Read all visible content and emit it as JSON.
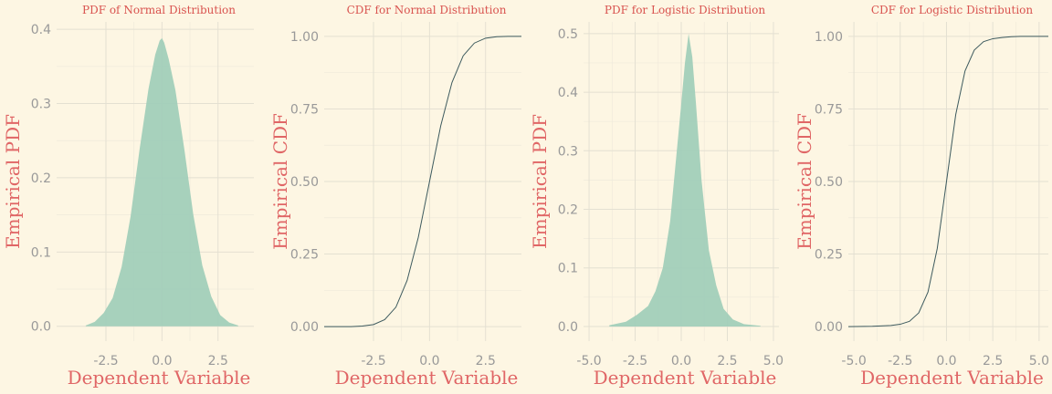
{
  "colors": {
    "background": "#fdf6e3",
    "title": "#d9534f",
    "axis_title": "#e06666",
    "tick": "#999999",
    "pdf_fill": "#9fcdb8",
    "cdf_line": "#3d5a5e"
  },
  "chart_data": [
    {
      "id": "p1",
      "type": "area",
      "title": "PDF of Normal Distribution",
      "xlabel": "Dependent Variable",
      "ylabel": "Empirical PDF",
      "xlim": [
        -4.7,
        4.1
      ],
      "ylim": [
        -0.02,
        0.41
      ],
      "xticks": [
        -2.5,
        0,
        2.5
      ],
      "xtick_labels": [
        "-2.5",
        "0.0",
        "2.5"
      ],
      "yticks": [
        0,
        0.1,
        0.2,
        0.3,
        0.4
      ],
      "ytick_labels": [
        "0.0",
        "0.1",
        "0.2",
        "0.3",
        "0.4"
      ],
      "grid": true,
      "x": [
        -3.4,
        -3.0,
        -2.6,
        -2.2,
        -1.8,
        -1.4,
        -1.0,
        -0.6,
        -0.3,
        -0.1,
        0.0,
        0.1,
        0.3,
        0.6,
        1.0,
        1.4,
        1.8,
        2.2,
        2.6,
        3.0,
        3.4
      ],
      "y": [
        0.001,
        0.006,
        0.018,
        0.038,
        0.08,
        0.148,
        0.238,
        0.32,
        0.366,
        0.385,
        0.388,
        0.382,
        0.36,
        0.318,
        0.238,
        0.15,
        0.082,
        0.04,
        0.015,
        0.005,
        0.001
      ]
    },
    {
      "id": "p2",
      "type": "line",
      "title": "CDF for Normal Distribution",
      "xlabel": "Dependent Variable",
      "ylabel": "Empirical CDF",
      "xlim": [
        -4.7,
        4.1
      ],
      "ylim": [
        -0.05,
        1.05
      ],
      "xticks": [
        -2.5,
        0,
        2.5
      ],
      "xtick_labels": [
        "-2.5",
        "0.0",
        "2.5"
      ],
      "yticks": [
        0,
        0.25,
        0.5,
        0.75,
        1.0
      ],
      "ytick_labels": [
        "0.00",
        "0.25",
        "0.50",
        "0.75",
        "1.00"
      ],
      "grid": true,
      "x": [
        -4.7,
        -3.5,
        -3.0,
        -2.5,
        -2.0,
        -1.5,
        -1.0,
        -0.5,
        0.0,
        0.5,
        1.0,
        1.5,
        2.0,
        2.5,
        3.0,
        3.5,
        4.1
      ],
      "y": [
        0.0,
        0.0,
        0.002,
        0.007,
        0.024,
        0.067,
        0.159,
        0.308,
        0.5,
        0.692,
        0.841,
        0.933,
        0.977,
        0.994,
        0.999,
        1.0,
        1.0
      ]
    },
    {
      "id": "p3",
      "type": "area",
      "title": "PDF for Logistic Distribution",
      "xlabel": "Dependent Variable",
      "ylabel": "Empirical PDF",
      "xlim": [
        -5.3,
        5.3
      ],
      "ylim": [
        -0.025,
        0.52
      ],
      "xticks": [
        -5,
        -2.5,
        0,
        2.5,
        5
      ],
      "xtick_labels": [
        "-5.0",
        "-2.5",
        "0.0",
        "2.5",
        "5.0"
      ],
      "yticks": [
        0,
        0.1,
        0.2,
        0.3,
        0.4,
        0.5
      ],
      "ytick_labels": [
        "0.0",
        "0.1",
        "0.2",
        "0.3",
        "0.4",
        "0.5"
      ],
      "grid": true,
      "x": [
        -3.9,
        -3.0,
        -2.4,
        -1.8,
        -1.4,
        -1.0,
        -0.6,
        -0.3,
        0.0,
        0.2,
        0.4,
        0.6,
        0.8,
        1.1,
        1.5,
        1.9,
        2.3,
        2.8,
        3.4,
        4.3
      ],
      "y": [
        0.002,
        0.008,
        0.02,
        0.035,
        0.06,
        0.1,
        0.18,
        0.28,
        0.38,
        0.45,
        0.5,
        0.46,
        0.38,
        0.25,
        0.13,
        0.07,
        0.03,
        0.012,
        0.004,
        0.001
      ]
    },
    {
      "id": "p4",
      "type": "line",
      "title": "CDF for Logistic Distribution",
      "xlabel": "Dependent Variable",
      "ylabel": "Empirical CDF",
      "xlim": [
        -5.3,
        5.5
      ],
      "ylim": [
        -0.05,
        1.05
      ],
      "xticks": [
        -5,
        -2.5,
        0,
        2.5,
        5
      ],
      "xtick_labels": [
        "-5.0",
        "-2.5",
        "0.0",
        "2.5",
        "5.0"
      ],
      "yticks": [
        0,
        0.25,
        0.5,
        0.75,
        1.0
      ],
      "ytick_labels": [
        "0.00",
        "0.25",
        "0.50",
        "0.75",
        "1.00"
      ],
      "grid": true,
      "x": [
        -5.3,
        -4.0,
        -3.0,
        -2.5,
        -2.0,
        -1.5,
        -1.0,
        -0.5,
        0.0,
        0.5,
        1.0,
        1.5,
        2.0,
        2.5,
        3.0,
        3.5,
        4.0,
        5.5
      ],
      "y": [
        0.0,
        0.001,
        0.004,
        0.008,
        0.018,
        0.047,
        0.119,
        0.269,
        0.5,
        0.731,
        0.881,
        0.953,
        0.982,
        0.992,
        0.996,
        0.999,
        1.0,
        1.0
      ]
    }
  ]
}
